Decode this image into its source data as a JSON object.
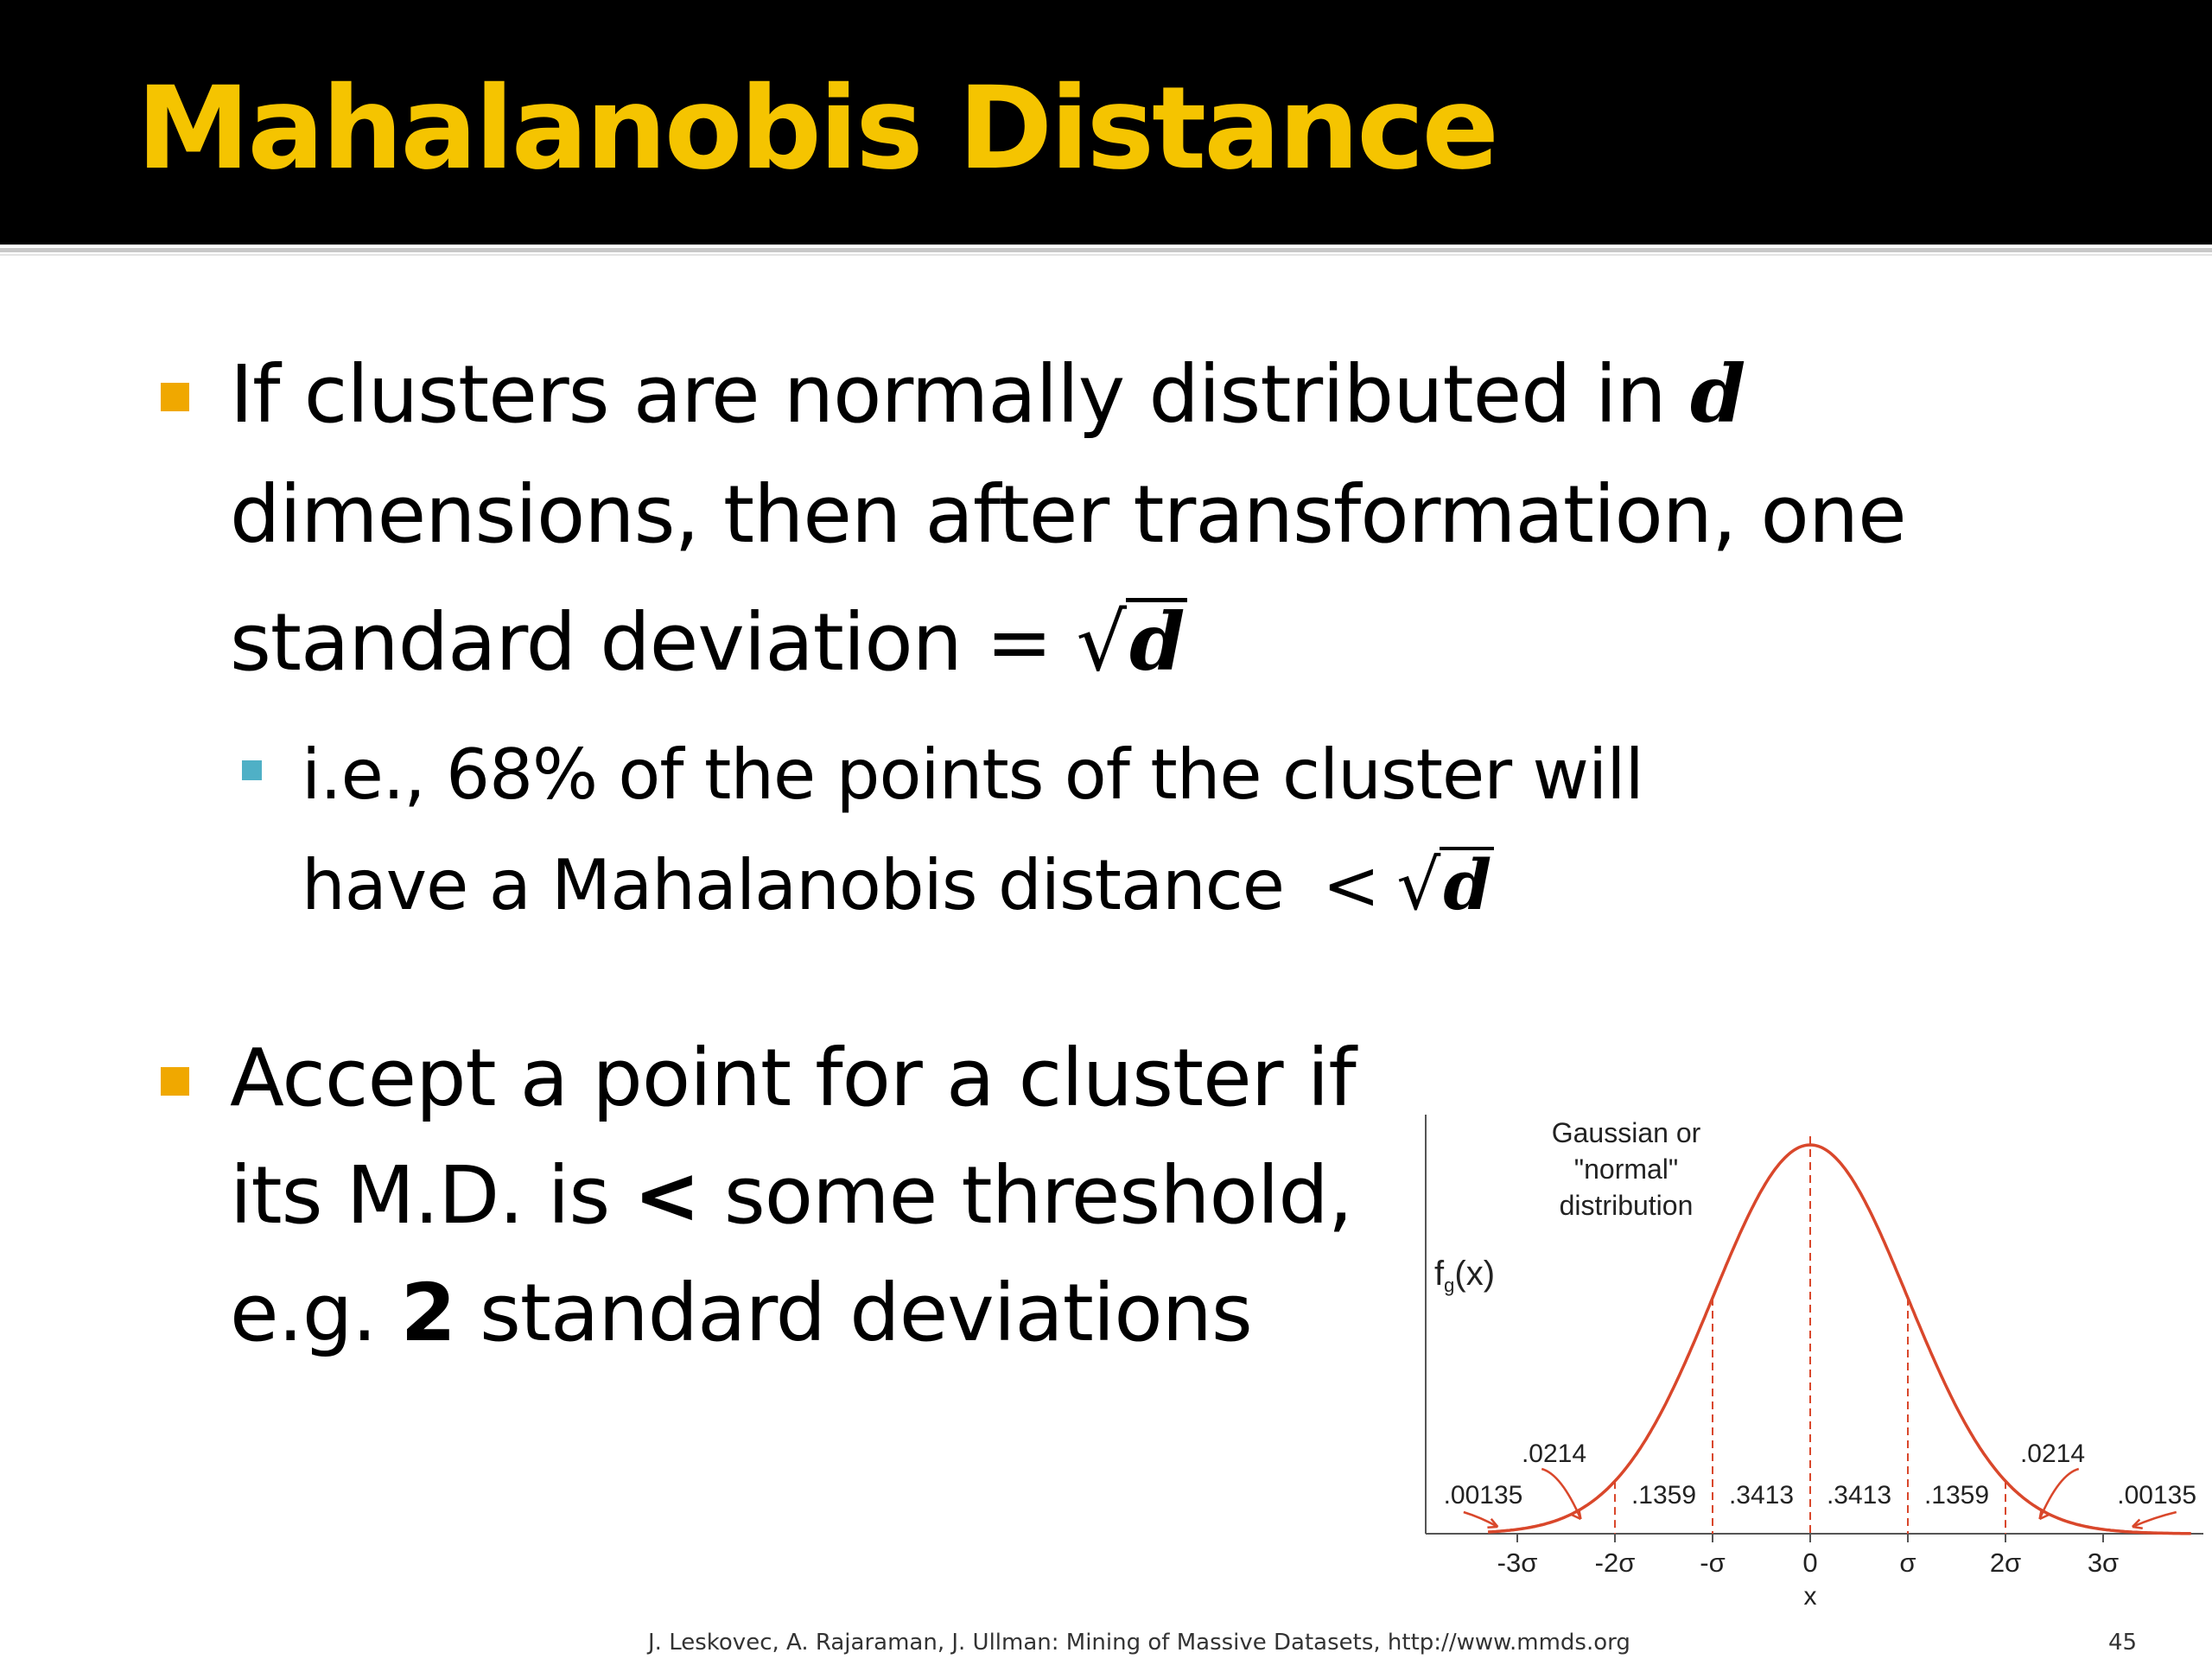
{
  "slide": {
    "title": "Mahalanobis Distance",
    "bullet1": {
      "line1_text": "If clusters are normally distributed in ",
      "line1_var": "d",
      "line2": "dimensions, then after transformation, one",
      "line3_text": "standard deviation = ",
      "sqrt_symbol": "√",
      "sqrt_var": "d"
    },
    "subbullet1": {
      "line1": "i.e., 68% of the points of the cluster will",
      "line2_text": "have a Mahalanobis distance ",
      "lt_symbol": "<",
      "sqrt_symbol": "√",
      "sqrt_var": "d"
    },
    "bullet2": {
      "line1": "Accept a point for a cluster if",
      "line2_pre": "its M.D. is ",
      "line2_bold": "<",
      "line2_post": " some threshold,",
      "line3_pre": "e.g. ",
      "line3_bold": "2",
      "line3_post": " standard deviations"
    },
    "footer": {
      "source": "J. Leskovec, A. Rajaraman, J. Ullman: Mining of Massive Datasets, http://www.mmds.org",
      "page_number": "45"
    },
    "colors": {
      "title_bg": "#000000",
      "title_fg": "#f5c400",
      "bullet": "#f0a800",
      "sub_bullet": "#4fb0c6",
      "curve": "#d9472b"
    }
  },
  "chart_data": {
    "type": "line",
    "curve_label_lines": [
      "Gaussian or",
      "\"normal\"",
      "distribution"
    ],
    "ylabel_main": "f",
    "ylabel_sub": "g",
    "ylabel_arg": "(x)",
    "xlabel": "x",
    "x_ticks": [
      -3,
      -2,
      -1,
      0,
      1,
      2,
      3
    ],
    "x_tick_labels": [
      "-3σ",
      "-2σ",
      "-σ",
      "0",
      "σ",
      "2σ",
      "3σ"
    ],
    "xlim": [
      -3.3,
      3.9
    ],
    "series": [
      {
        "mean": 0,
        "sd": 1
      }
    ],
    "region_probabilities": [
      {
        "from": -4,
        "to": -3,
        "value": ".00135"
      },
      {
        "from": -3,
        "to": -2,
        "value": ".0214"
      },
      {
        "from": -2,
        "to": -1,
        "value": ".1359"
      },
      {
        "from": -1,
        "to": 0,
        "value": ".3413"
      },
      {
        "from": 0,
        "to": 1,
        "value": ".3413"
      },
      {
        "from": 1,
        "to": 2,
        "value": ".1359"
      },
      {
        "from": 2,
        "to": 3,
        "value": ".0214"
      },
      {
        "from": 3,
        "to": 4,
        "value": ".00135"
      }
    ]
  }
}
